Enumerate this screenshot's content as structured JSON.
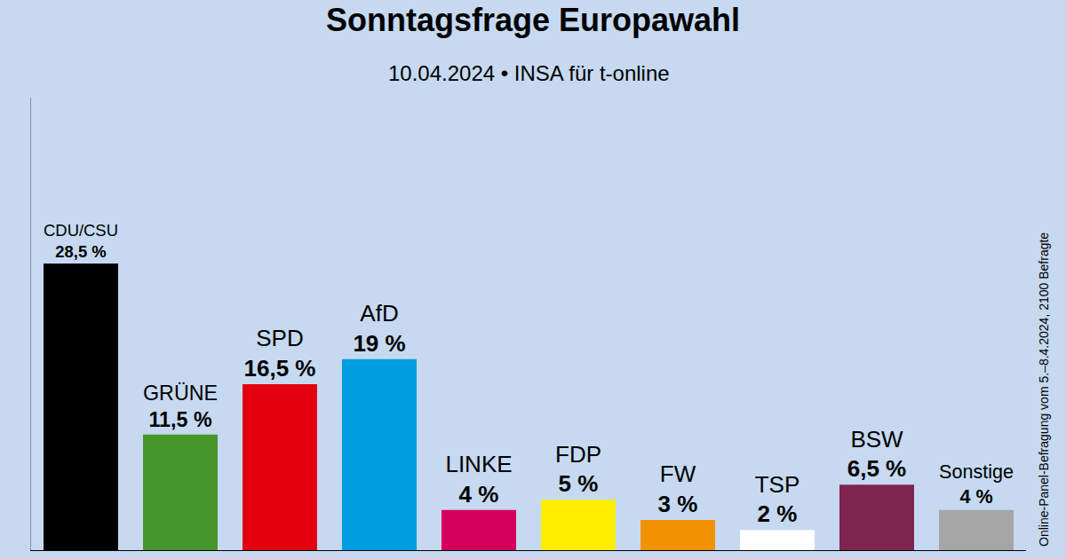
{
  "chart_data": {
    "type": "bar",
    "title": "Sonntagsfrage Europawahl",
    "subtitle": "10.04.2024 • INSA für t-online",
    "note": "Online-Panel-Befragung vom 5.–8.4.2024, 2100 Befragte",
    "categories": [
      "CDU/CSU",
      "GRÜNE",
      "SPD",
      "AfD",
      "LINKE",
      "FDP",
      "FW",
      "TSP",
      "BSW",
      "Sonstige"
    ],
    "values": [
      28.5,
      11.5,
      16.5,
      19,
      4,
      5,
      3,
      2,
      6.5,
      4
    ],
    "value_labels": [
      "28,5 %",
      "11,5 %",
      "16,5 %",
      "19 %",
      "4 %",
      "5 %",
      "3 %",
      "2 %",
      "6,5 %",
      "4 %"
    ],
    "colors": [
      "#000000",
      "#46962b",
      "#e3000f",
      "#009ee0",
      "#d4005c",
      "#ffed00",
      "#f39200",
      "#ffffff",
      "#7d254f",
      "#a6a6a6"
    ],
    "ylim": [
      0,
      45
    ],
    "data_labels": true,
    "tick_labels": false,
    "grid": false
  }
}
